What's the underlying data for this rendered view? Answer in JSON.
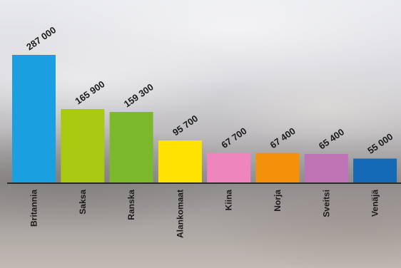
{
  "chart_data": {
    "type": "bar",
    "categories": [
      "Britannia",
      "Saksa",
      "Ranska",
      "Alankomaat",
      "Kiina",
      "Norja",
      "Sveitsi",
      "Venäjä"
    ],
    "values": [
      287000,
      165900,
      159300,
      95700,
      67700,
      67400,
      65400,
      55000
    ],
    "value_labels": [
      "287 000",
      "165 900",
      "159 300",
      "95 700",
      "67 700",
      "67 400",
      "65 400",
      "55 000"
    ],
    "colors": [
      "#1aa0e0",
      "#a8c812",
      "#7bb82c",
      "#ffe300",
      "#ee86bd",
      "#f5900a",
      "#be74b4",
      "#146ab5"
    ],
    "ylim": [
      0,
      287000
    ],
    "grid": false,
    "legend": "none"
  }
}
